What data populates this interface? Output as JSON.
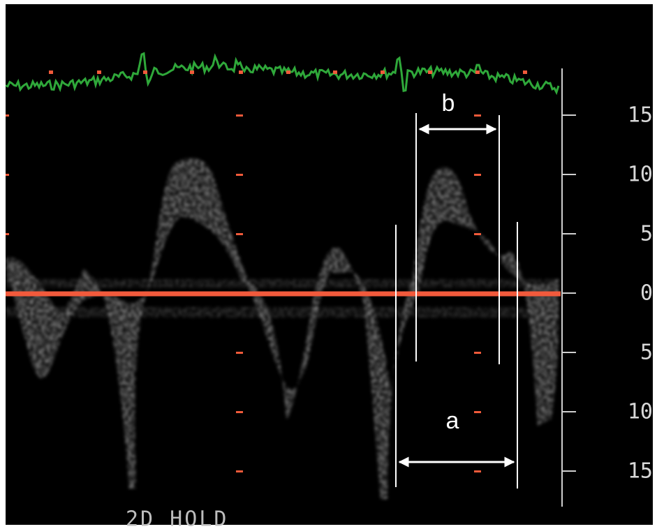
{
  "scale": {
    "labels": [
      "15",
      "10",
      "5",
      "0",
      "5",
      "10",
      "15"
    ]
  },
  "measurements": [
    {
      "label": "b"
    },
    {
      "label": "a"
    }
  ],
  "status": "2D HOLD"
}
